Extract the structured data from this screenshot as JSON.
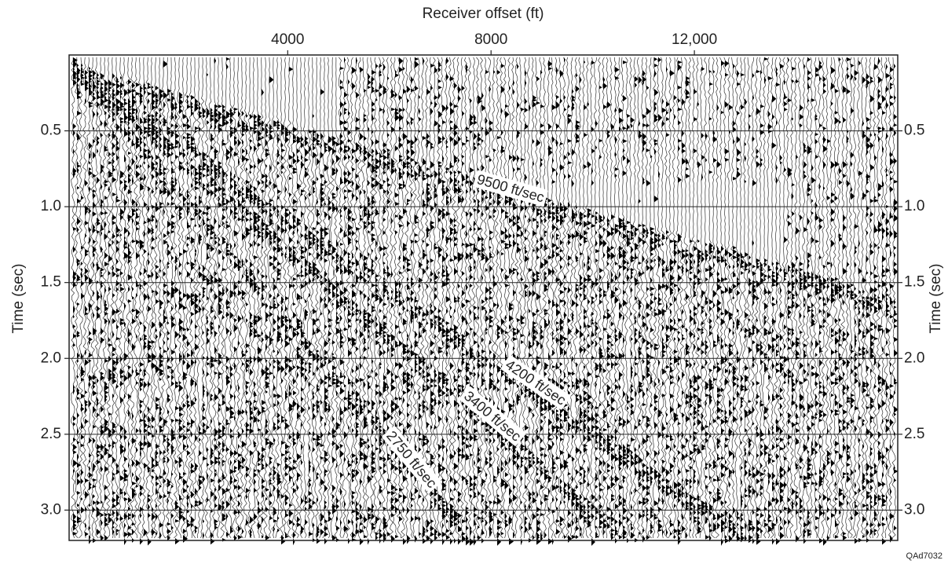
{
  "chart_data": {
    "type": "seismic-gather",
    "x_label": "Receiver offset (ft)",
    "y_label": "Time (sec)",
    "xlim": [
      -300,
      16000
    ],
    "xticks": [
      4000,
      8000,
      {
        "value": 12000,
        "label": "12,000"
      }
    ],
    "ylim": [
      0,
      3.2
    ],
    "y_reversed": true,
    "yticks": [
      0.5,
      {
        "value": 1.0,
        "label": "1.0"
      },
      1.5,
      {
        "value": 2.0,
        "label": "2.0"
      },
      2.5,
      {
        "value": 3.0,
        "label": "3.0"
      }
    ],
    "y_axis_both_sides": true,
    "grid": true,
    "annotations": [
      "9500 ft/sec",
      "4200 ft/sec",
      "3400 ft/sec",
      "2750 ft/sec"
    ],
    "credit": "QAd7032"
  }
}
